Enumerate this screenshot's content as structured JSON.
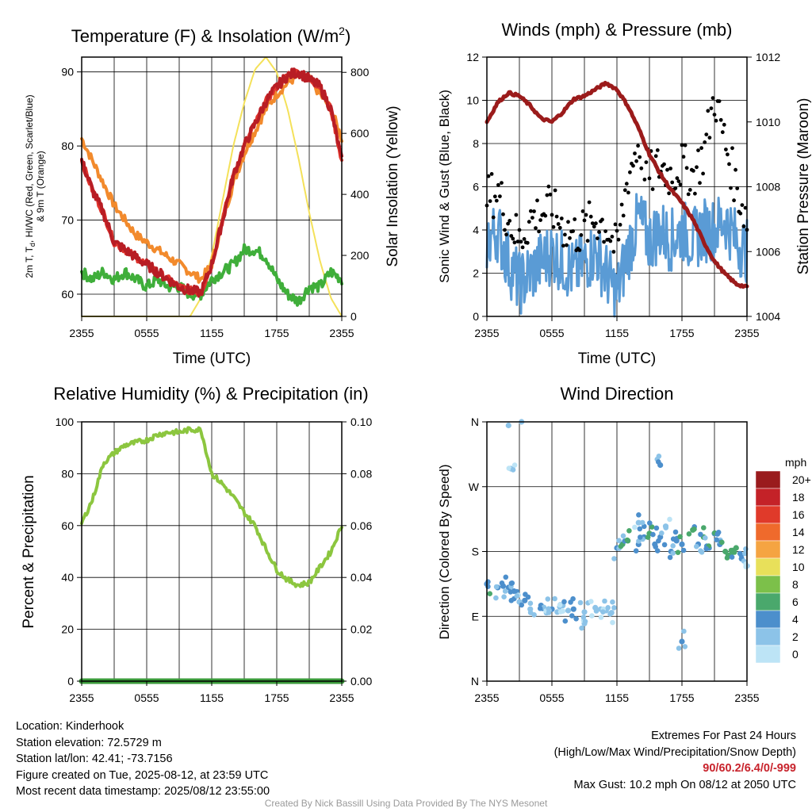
{
  "panels": {
    "temperature": {
      "title_main": "Temperature (F) & Insolation (W/m",
      "title_sup": "2",
      "title_end": ")",
      "ylabel_line1": "2m T, T",
      "ylabel_line1_sub": "d",
      "ylabel_line1_end": ", HI/WC (Red, Green, Scarlet/Blue)",
      "ylabel_line2": "& 9m T (Orange)",
      "y2label": "Solar Insolation (Yellow)",
      "xlabel": "Time (UTC)",
      "yticks": [
        "60",
        "70",
        "80",
        "90"
      ],
      "y2ticks": [
        "0",
        "200",
        "400",
        "600",
        "800"
      ],
      "xticks": [
        "2355",
        "0555",
        "1155",
        "1755",
        "2355"
      ]
    },
    "winds": {
      "title": "Winds (mph) & Pressure (mb)",
      "ylabel": "Sonic Wind & Gust (Blue, Black)",
      "y2label": "Station Pressure (Maroon)",
      "xlabel": "Time (UTC)",
      "yticks": [
        "0",
        "2",
        "4",
        "6",
        "8",
        "10",
        "12"
      ],
      "y2ticks": [
        "1004",
        "1006",
        "1008",
        "1010",
        "1012"
      ],
      "xticks": [
        "2355",
        "0555",
        "1155",
        "1755",
        "2355"
      ]
    },
    "humidity": {
      "title": "Relative Humidity (%) & Precipitation (in)",
      "ylabel": "Percent & Precipitation",
      "yticks": [
        "0",
        "20",
        "40",
        "60",
        "80",
        "100"
      ],
      "y2ticks": [
        "0.00",
        "0.02",
        "0.04",
        "0.06",
        "0.08",
        "0.10"
      ],
      "xticks": [
        "2355",
        "0555",
        "1155",
        "1755",
        "2355"
      ]
    },
    "direction": {
      "title": "Wind Direction",
      "ylabel": "Direction (Colored By Speed)",
      "yticks": [
        "N",
        "E",
        "S",
        "W",
        "N"
      ],
      "xticks": [
        "2355",
        "0555",
        "1155",
        "1755",
        "2355"
      ],
      "legend_title": "mph",
      "legend_labels": [
        "20+",
        "18",
        "16",
        "14",
        "12",
        "10",
        "8",
        "6",
        "4",
        "2",
        "0"
      ]
    }
  },
  "info": {
    "location": "Location: Kinderhook",
    "elevation": "Station elevation: 72.5729 m",
    "latlon": "Station lat/lon: 42.41; -73.7156",
    "created": "Figure created on Tue, 2025-08-12, at 23:59 UTC",
    "recent": "Most recent data timestamp: 2025/08/12 23:55:00"
  },
  "extremes": {
    "title": "Extremes For Past 24 Hours",
    "subtitle": "(High/Low/Max Wind/Precipitation/Snow Depth)",
    "values": "90/60.2/6.4/0/-999",
    "max_gust": "Max Gust: 10.2 mph On 08/12 at 2050 UTC"
  },
  "credit": "Created By Nick Bassill Using Data Provided By The NYS Mesonet",
  "colors": {
    "temp": "#b81d24",
    "hi_wc": "#e0342c",
    "dewpoint": "#3fae3a",
    "temp9m": "#f28a2c",
    "insolation": "#f4e15a",
    "wind": "#5a9bd5",
    "gust": "#000000",
    "pressure": "#9b1b1b",
    "humidity": "#8cc63f",
    "precip": "#3a9a3a"
  },
  "speed_colors": [
    "#bde4f6",
    "#8cc3e8",
    "#4c8fcc",
    "#4aa86c",
    "#7cc04a",
    "#e8e05a",
    "#f5a442",
    "#ef6a2c",
    "#e03a2a",
    "#c42228",
    "#9a1b1d"
  ],
  "chart_data": [
    {
      "type": "line",
      "name": "temperature",
      "x_hours": [
        0,
        1,
        2,
        3,
        4,
        5,
        6,
        7,
        8,
        9,
        10,
        11,
        12,
        13,
        14,
        15,
        16,
        17,
        18,
        19,
        20,
        21,
        22,
        23,
        24
      ],
      "series": [
        {
          "name": "2m T",
          "values": [
            78,
            74,
            71,
            67,
            66,
            65,
            64,
            63,
            62,
            61,
            60.5,
            60.2,
            64,
            70,
            76,
            80,
            83,
            86,
            88,
            89.5,
            90,
            89,
            88,
            85,
            78
          ]
        },
        {
          "name": "HI/WC",
          "values": [
            78,
            74,
            71,
            67,
            66,
            65,
            64,
            63,
            62,
            61,
            60.5,
            60.2,
            64,
            70,
            76,
            80,
            83,
            86,
            88,
            89.5,
            90,
            89,
            88,
            85,
            78
          ]
        },
        {
          "name": "Td",
          "values": [
            63,
            62,
            63,
            62,
            63,
            62,
            61,
            62,
            61,
            61,
            60,
            60,
            62,
            63,
            64,
            66,
            66,
            65,
            62,
            60,
            59,
            61,
            61,
            63,
            62
          ]
        },
        {
          "name": "9m T",
          "values": [
            81,
            78,
            75,
            72,
            70,
            68,
            67,
            66,
            65,
            64,
            63,
            62,
            64,
            70,
            75,
            79,
            82,
            85,
            87,
            88.5,
            89.5,
            89,
            87,
            85,
            81
          ]
        },
        {
          "name": "Insolation",
          "y_axis": "right",
          "values": [
            0,
            0,
            0,
            0,
            0,
            0,
            0,
            0,
            0,
            0,
            0,
            60,
            200,
            380,
            560,
            700,
            810,
            850,
            800,
            680,
            520,
            340,
            180,
            60,
            0
          ]
        }
      ],
      "ylim": [
        57,
        92
      ],
      "y2lim": [
        0,
        850
      ]
    },
    {
      "type": "line",
      "name": "winds",
      "x_hours": [
        0,
        1,
        2,
        3,
        4,
        5,
        6,
        7,
        8,
        9,
        10,
        11,
        12,
        13,
        14,
        15,
        16,
        17,
        18,
        19,
        20,
        21,
        22,
        23,
        24
      ],
      "series": [
        {
          "name": "Sonic Wind",
          "values": [
            3.5,
            4,
            2.5,
            1.5,
            2,
            2.5,
            3,
            2.5,
            2,
            2.5,
            3,
            2,
            1,
            3,
            4.5,
            3.5,
            4,
            3.5,
            4,
            3.5,
            4,
            4,
            4.5,
            3.5,
            3
          ]
        },
        {
          "name": "Gust",
          "values": [
            5.5,
            5.8,
            4.5,
            3.5,
            4.5,
            4.8,
            5,
            4.2,
            3.8,
            4,
            4.5,
            4.2,
            3,
            6.5,
            8,
            6.5,
            7,
            6.5,
            7,
            6.5,
            7.5,
            10.2,
            8,
            6,
            4.5
          ]
        },
        {
          "name": "Station Pressure",
          "y_axis": "right",
          "values": [
            1010,
            1010.6,
            1010.9,
            1010.8,
            1010.5,
            1010.1,
            1010,
            1010.3,
            1010.7,
            1010.8,
            1011,
            1011.2,
            1011,
            1010.5,
            1009.8,
            1009,
            1008.4,
            1007.9,
            1007.5,
            1007,
            1006.3,
            1005.7,
            1005.3,
            1005.0,
            1004.9
          ]
        }
      ],
      "ylim": [
        0,
        12
      ],
      "y2lim": [
        1004,
        1012
      ]
    },
    {
      "type": "line",
      "name": "humidity",
      "x_hours": [
        0,
        1,
        2,
        3,
        4,
        5,
        6,
        7,
        8,
        9,
        10,
        11,
        12,
        13,
        14,
        15,
        16,
        17,
        18,
        19,
        20,
        21,
        22,
        23,
        24
      ],
      "series": [
        {
          "name": "Relative Humidity",
          "values": [
            61,
            70,
            84,
            88,
            91,
            92,
            93,
            95,
            96,
            96,
            97,
            97,
            80,
            76,
            71,
            65,
            60,
            51,
            43,
            39,
            37,
            38,
            44,
            50,
            60
          ]
        },
        {
          "name": "Precipitation",
          "y_axis": "right",
          "values": [
            0,
            0,
            0,
            0,
            0,
            0,
            0,
            0,
            0,
            0,
            0,
            0,
            0,
            0,
            0,
            0,
            0,
            0,
            0,
            0,
            0,
            0,
            0,
            0,
            0
          ]
        }
      ],
      "ylim": [
        0,
        100
      ],
      "y2lim": [
        0,
        0.1
      ]
    },
    {
      "type": "scatter",
      "name": "wind direction",
      "ylim": [
        0,
        360
      ],
      "x_hours": [
        0,
        1,
        1.5,
        2,
        2.5,
        3,
        3.5,
        4,
        5,
        5.5,
        6,
        6.5,
        7,
        7.5,
        8,
        9,
        10,
        10.5,
        11,
        11.5,
        12,
        12.5,
        13,
        14,
        14.5,
        15,
        15.5,
        16,
        16.5,
        17,
        17.5,
        18,
        19,
        19.5,
        20,
        20.5,
        21,
        21.5,
        22,
        22.5,
        23,
        23.5,
        24,
        2,
        2.2,
        3.2,
        9,
        14,
        16,
        18
      ],
      "directions": [
        135,
        130,
        132,
        130,
        125,
        110,
        112,
        100,
        105,
        95,
        100,
        96,
        105,
        98,
        100,
        96,
        102,
        100,
        98,
        95,
        185,
        190,
        195,
        190,
        200,
        205,
        190,
        200,
        215,
        180,
        195,
        190,
        210,
        190,
        200,
        185,
        205,
        190,
        180,
        175,
        185,
        170,
        160,
        355,
        295,
        360,
        80,
        220,
        300,
        55
      ],
      "speeds": [
        4,
        3,
        3,
        4,
        3,
        2,
        3,
        2,
        3,
        2,
        3,
        2,
        1,
        2,
        3,
        2,
        1,
        1,
        2,
        2,
        3,
        4,
        5,
        3,
        4,
        5,
        3,
        4,
        2,
        3,
        4,
        4,
        5,
        3,
        6,
        4,
        4,
        3,
        5,
        6,
        6,
        3,
        2,
        1,
        1,
        1,
        1,
        2,
        3,
        3
      ]
    }
  ]
}
